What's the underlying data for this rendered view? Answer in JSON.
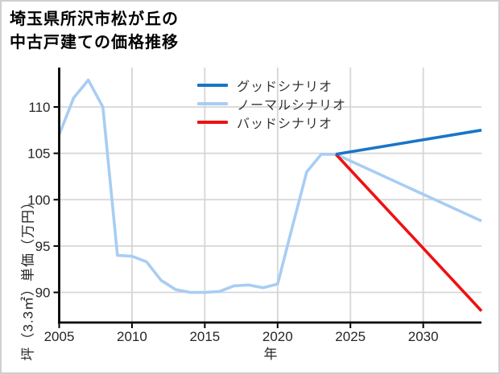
{
  "page": {
    "title_lines": [
      "埼玉県所沢市松が丘の",
      "中古戸建ての価格推移"
    ]
  },
  "chart_data": {
    "type": "line",
    "title": "埼玉県所沢市松が丘の中古戸建ての価格推移",
    "xlabel": "年",
    "ylabel": "坪（3.3㎡）単価（万円）",
    "xlim": [
      2005,
      2034
    ],
    "ylim": [
      86.75,
      114.25
    ],
    "xticks": [
      2005,
      2010,
      2015,
      2020,
      2025,
      2030
    ],
    "yticks": [
      90,
      95,
      100,
      105,
      110
    ],
    "grid": true,
    "legend_position": "upper center-right, no frame",
    "colors": {
      "good": "#1776c8",
      "normal": "#a8cdf3",
      "bad": "#ee1111",
      "gridline": "#d6d6d6",
      "axis": "#000000"
    },
    "series": [
      {
        "name": "グッドシナリオ",
        "color": "#1776c8",
        "x": [
          2024,
          2034
        ],
        "y": [
          104.9,
          107.5
        ]
      },
      {
        "name": "ノーマルシナリオ",
        "color": "#a8cdf3",
        "x": [
          2005,
          2006,
          2007,
          2008,
          2009,
          2010,
          2011,
          2012,
          2013,
          2014,
          2015,
          2016,
          2017,
          2018,
          2019,
          2020,
          2021,
          2022,
          2023,
          2024,
          2034
        ],
        "y": [
          107.0,
          111.0,
          112.9,
          110.0,
          94.0,
          93.9,
          93.3,
          91.3,
          90.3,
          90.0,
          90.0,
          90.1,
          90.7,
          90.8,
          90.5,
          90.9,
          97.0,
          103.0,
          104.9,
          104.9,
          97.7
        ]
      },
      {
        "name": "バッドシナリオ",
        "color": "#ee1111",
        "x": [
          2024,
          2034
        ],
        "y": [
          104.9,
          88.0
        ]
      }
    ],
    "draw_order": [
      1,
      2,
      0
    ]
  }
}
